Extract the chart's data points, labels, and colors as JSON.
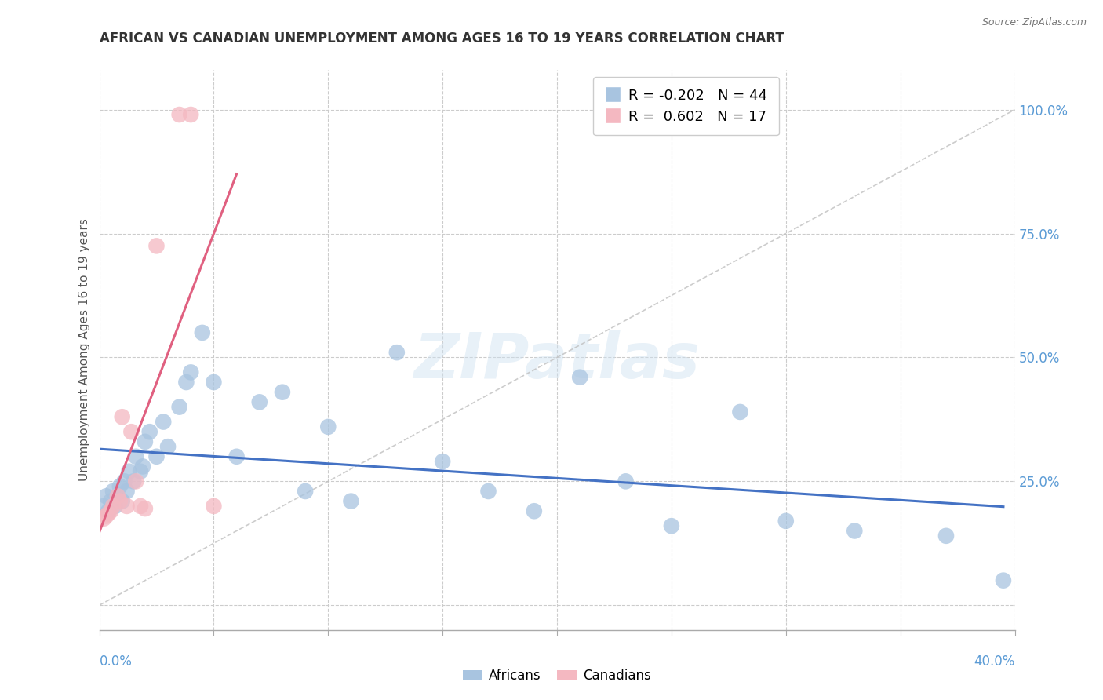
{
  "title": "AFRICAN VS CANADIAN UNEMPLOYMENT AMONG AGES 16 TO 19 YEARS CORRELATION CHART",
  "source": "Source: ZipAtlas.com",
  "ylabel": "Unemployment Among Ages 16 to 19 years",
  "xlim": [
    0.0,
    0.4
  ],
  "ylim": [
    -0.05,
    1.08
  ],
  "african_color": "#a8c4e0",
  "canadian_color": "#f4b8c1",
  "trendline_african_color": "#4472c4",
  "trendline_canadian_color": "#e06080",
  "trendline_diagonal_color": "#c0c0c0",
  "r_african": -0.202,
  "n_african": 44,
  "r_canadian": 0.602,
  "n_canadian": 17,
  "watermark": "ZIPatlas",
  "background_color": "#ffffff",
  "africans_x": [
    0.002,
    0.003,
    0.004,
    0.005,
    0.006,
    0.007,
    0.008,
    0.009,
    0.01,
    0.011,
    0.012,
    0.013,
    0.015,
    0.016,
    0.018,
    0.019,
    0.02,
    0.022,
    0.025,
    0.028,
    0.03,
    0.035,
    0.038,
    0.04,
    0.045,
    0.05,
    0.06,
    0.07,
    0.08,
    0.09,
    0.1,
    0.11,
    0.13,
    0.15,
    0.17,
    0.19,
    0.21,
    0.23,
    0.25,
    0.28,
    0.3,
    0.33,
    0.37,
    0.395
  ],
  "africans_y": [
    0.2,
    0.22,
    0.19,
    0.21,
    0.23,
    0.2,
    0.22,
    0.24,
    0.21,
    0.25,
    0.23,
    0.27,
    0.25,
    0.3,
    0.27,
    0.28,
    0.33,
    0.35,
    0.3,
    0.37,
    0.32,
    0.4,
    0.45,
    0.47,
    0.55,
    0.45,
    0.3,
    0.41,
    0.43,
    0.23,
    0.36,
    0.21,
    0.51,
    0.29,
    0.23,
    0.19,
    0.46,
    0.25,
    0.16,
    0.39,
    0.17,
    0.15,
    0.14,
    0.05
  ],
  "canadians_x": [
    0.002,
    0.003,
    0.004,
    0.005,
    0.006,
    0.008,
    0.009,
    0.01,
    0.012,
    0.014,
    0.016,
    0.018,
    0.02,
    0.025,
    0.035,
    0.04,
    0.05
  ],
  "canadians_y": [
    0.175,
    0.18,
    0.185,
    0.19,
    0.2,
    0.22,
    0.21,
    0.38,
    0.2,
    0.35,
    0.25,
    0.2,
    0.195,
    0.725,
    0.99,
    0.99,
    0.2
  ]
}
